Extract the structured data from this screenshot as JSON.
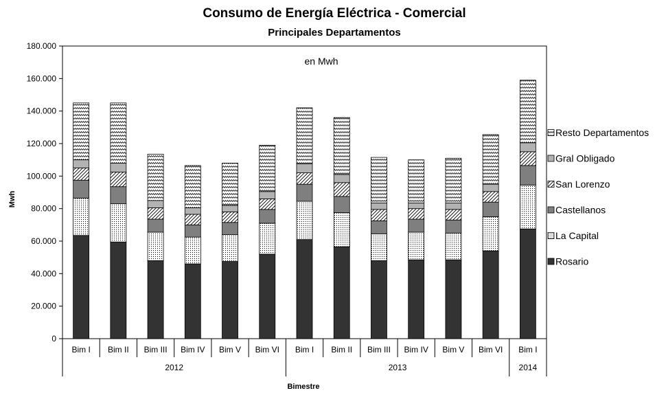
{
  "chart_data": {
    "type": "bar",
    "stacked": true,
    "title": "Consumo de Energía Eléctrica - Comercial",
    "subtitle": "Principales Departamentos",
    "annotation": "en Mwh",
    "xlabel": "Bimestre",
    "ylabel": "Mwh",
    "ylim": [
      0,
      180000
    ],
    "yticks": [
      "0",
      "20.000",
      "40.000",
      "60.000",
      "80.000",
      "100.000",
      "120.000",
      "140.000",
      "160.000",
      "180.000"
    ],
    "grid": false,
    "legend_position": "right",
    "categories": [
      "Bim I",
      "Bim II",
      "Bim III",
      "Bim IV",
      "Bim V",
      "Bim VI",
      "Bim I",
      "Bim II",
      "Bim III",
      "Bim IV",
      "Bim V",
      "Bim VI",
      "Bim I"
    ],
    "groups": [
      {
        "label": "2012",
        "count": 6
      },
      {
        "label": "2013",
        "count": 6
      },
      {
        "label": "2014",
        "count": 1
      }
    ],
    "series": [
      {
        "name": "Rosario",
        "values": [
          63500,
          59500,
          48000,
          46000,
          47500,
          52000,
          61000,
          56500,
          48000,
          48500,
          48500,
          54000,
          67500
        ]
      },
      {
        "name": "La Capital",
        "values": [
          23000,
          23500,
          17500,
          16500,
          16500,
          19000,
          23500,
          21000,
          16500,
          17000,
          16500,
          21000,
          27000
        ]
      },
      {
        "name": "Castellanos",
        "values": [
          11000,
          10500,
          8000,
          7500,
          7500,
          8500,
          10500,
          10000,
          8000,
          8000,
          8000,
          9000,
          12000
        ]
      },
      {
        "name": "San Lorenzo",
        "values": [
          7500,
          9000,
          7000,
          6500,
          6500,
          6500,
          7000,
          8500,
          7000,
          6500,
          6500,
          6500,
          8500
        ]
      },
      {
        "name": "Gral Obligado",
        "values": [
          5000,
          5500,
          4500,
          4000,
          4000,
          4500,
          5500,
          5000,
          4000,
          3500,
          4000,
          4500,
          5500
        ]
      },
      {
        "name": "Resto Departamentos",
        "values": [
          35000,
          37000,
          28500,
          26000,
          26000,
          28500,
          34500,
          35000,
          28000,
          26500,
          27500,
          30500,
          38500
        ]
      }
    ]
  }
}
